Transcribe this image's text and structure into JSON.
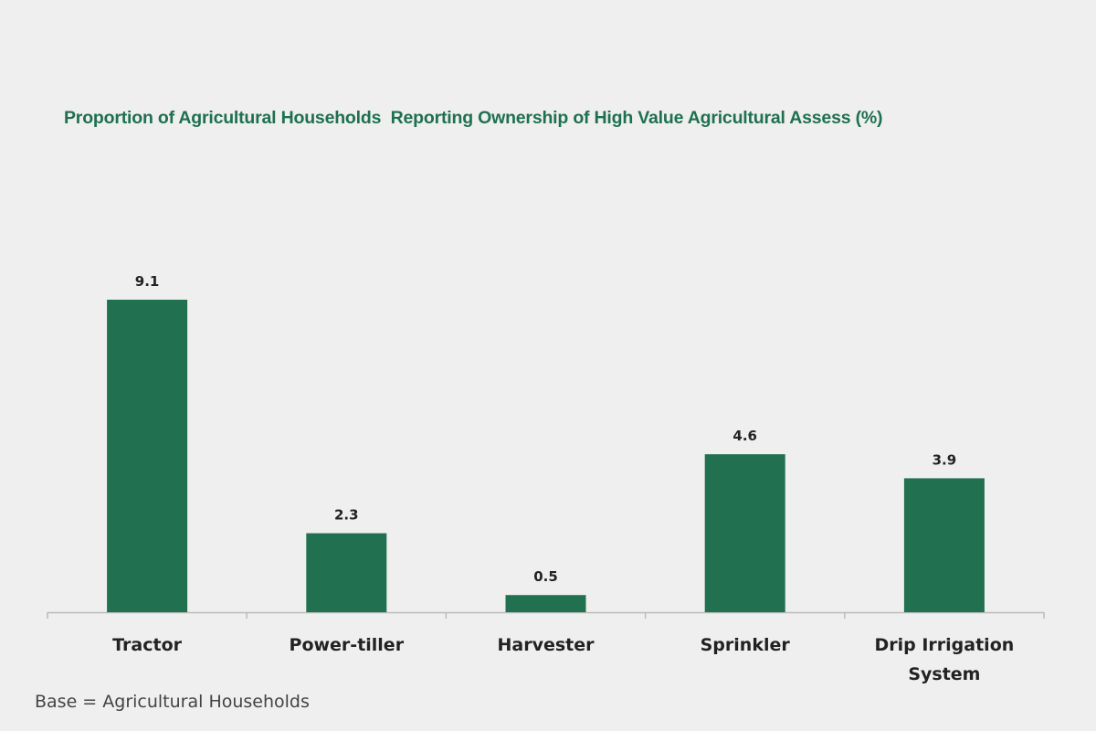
{
  "chart_data": {
    "type": "bar",
    "title": "Proportion of Agricultural Households  Reporting Ownership of High Value Agricultural Assess (%)",
    "categories": [
      "Tractor",
      "Power-tiller",
      "Harvester",
      "Sprinkler",
      "Drip Irrigation System"
    ],
    "values": [
      9.1,
      2.3,
      0.5,
      4.6,
      3.9
    ],
    "color": "#217050",
    "footnote": "Base = Agricultural Households"
  }
}
